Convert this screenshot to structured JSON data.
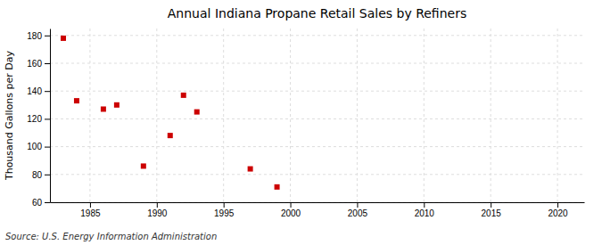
{
  "chart_data": {
    "type": "scatter",
    "title": "Annual Indiana Propane Retail Sales by Refiners",
    "y_label": "Thousand Gallons per Day",
    "source": "Source: U.S. Energy Information Administration",
    "x": [
      1983,
      1984,
      1986,
      1987,
      1989,
      1991,
      1992,
      1993,
      1997,
      1999
    ],
    "values": [
      178,
      133,
      127,
      130,
      86,
      108,
      137,
      125,
      84,
      71
    ],
    "color": "#cc0000",
    "marker": "square",
    "xlim": [
      1982,
      2022
    ],
    "ylim": [
      60,
      185
    ],
    "xticks": [
      1985,
      1990,
      1995,
      2000,
      2005,
      2010,
      2015,
      2020
    ],
    "yticks": [
      60,
      80,
      100,
      120,
      140,
      160,
      180
    ],
    "grid": true
  }
}
